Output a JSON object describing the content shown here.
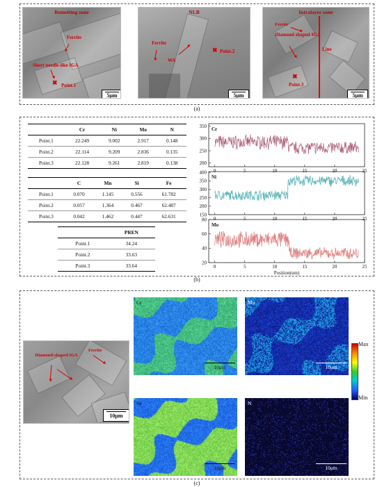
{
  "panel_a": {
    "label": "(a)",
    "tiles": [
      {
        "title": "Remelting zone",
        "annotations": [
          "Ferrite",
          "Short needle-like IGA",
          "Point.1"
        ],
        "scale": "5μm"
      },
      {
        "title": "NLB",
        "annotations": [
          "Ferrite",
          "WA",
          "Point.2"
        ],
        "scale": "5μm"
      },
      {
        "title": "Intralayer zone",
        "annotations": [
          "Ferrite",
          "Diamond shaped IGA",
          "Line",
          "Point.3"
        ],
        "scale": "5μm"
      }
    ]
  },
  "panel_b": {
    "label": "(b)",
    "table1": {
      "headers": [
        "",
        "Cr",
        "Ni",
        "Mo",
        "N"
      ],
      "rows": [
        [
          "Point.1",
          "22.249",
          "9.002",
          "2.917",
          "0.148"
        ],
        [
          "Point.2",
          "22.114",
          "9.209",
          "2.836",
          "0.135"
        ],
        [
          "Point.3",
          "22.128",
          "9.261",
          "2.819",
          "0.138"
        ]
      ]
    },
    "table2": {
      "headers": [
        "",
        "C",
        "Mn",
        "Si",
        "Fe"
      ],
      "rows": [
        [
          "Point.1",
          "0.070",
          "1.145",
          "0.556",
          "61.782"
        ],
        [
          "Point.2",
          "0.057",
          "1.364",
          "0.467",
          "62.487"
        ],
        [
          "Point.3",
          "0.042",
          "1.462",
          "0.447",
          "62.631"
        ]
      ]
    },
    "table3": {
      "headers": [
        "",
        "PREN"
      ],
      "rows": [
        [
          "Point.1",
          "34.24"
        ],
        [
          "Point.2",
          "33.63"
        ],
        [
          "Point.3",
          "33.64"
        ]
      ]
    }
  },
  "chart_data": {
    "type": "line",
    "xlabel": "Position(um)",
    "xlim": [
      -1,
      25
    ],
    "xticks": [
      0,
      5,
      10,
      15,
      20,
      25
    ],
    "panels": [
      {
        "name": "Cr",
        "color": "#b0667e",
        "yticks": [
          200,
          250,
          300,
          350
        ],
        "ylim": [
          185,
          360
        ],
        "segments": [
          {
            "x_start": 0,
            "x_end": 12.3,
            "base": 285,
            "amp": 35
          },
          {
            "x_start": 12.3,
            "x_end": 24,
            "base": 262,
            "amp": 32
          }
        ]
      },
      {
        "name": "Ni",
        "color": "#5bb5b8",
        "yticks": [
          150,
          200,
          250,
          300,
          350,
          400
        ],
        "ylim": [
          150,
          405
        ],
        "segments": [
          {
            "x_start": 0,
            "x_end": 12.2,
            "base": 265,
            "amp": 38
          },
          {
            "x_start": 12.2,
            "x_end": 24,
            "base": 350,
            "amp": 40
          }
        ]
      },
      {
        "name": "Mo",
        "color": "#e07f7f",
        "yticks": [
          20,
          40,
          60,
          80
        ],
        "ylim": [
          20,
          80
        ],
        "segments": [
          {
            "x_start": 0,
            "x_end": 12.4,
            "base": 52,
            "amp": 14
          },
          {
            "x_start": 12.4,
            "x_end": 24,
            "base": 33,
            "amp": 10
          }
        ]
      }
    ]
  },
  "panel_c": {
    "label": "(c)",
    "sem": {
      "annotations": [
        "Diamond-shaped IGA",
        "Ferrite"
      ],
      "scale": "10μm"
    },
    "maps": [
      {
        "element": "Cr",
        "scale": "10μm"
      },
      {
        "element": "Mo",
        "scale": "10μm"
      },
      {
        "element": "Ni",
        "scale": "10μm"
      },
      {
        "element": "N",
        "scale": "10μm"
      }
    ],
    "colorbar": {
      "max_label": "Max",
      "min_label": "Min"
    }
  }
}
